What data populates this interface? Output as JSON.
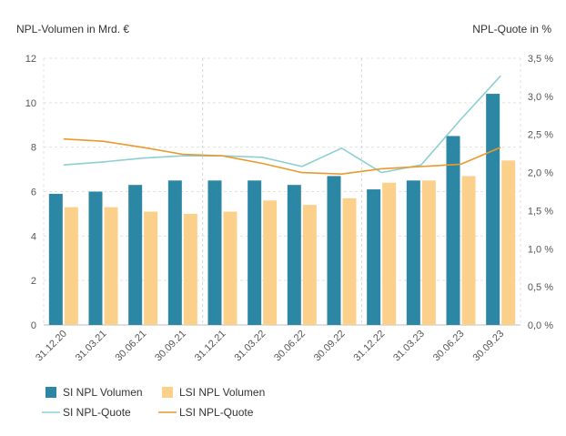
{
  "chart_data": {
    "type": "bar",
    "ylabel": "NPL-Volumen in Mrd. €",
    "y2label": "NPL-Quote in %",
    "ylim": [
      0,
      12
    ],
    "y2lim": [
      0,
      3.5
    ],
    "yticks": [
      "0",
      "2",
      "4",
      "6",
      "8",
      "10",
      "12"
    ],
    "y2ticks": [
      "0,0 %",
      "0,5 %",
      "1,0 %",
      "1,5 %",
      "2,0 %",
      "2,5 %",
      "3,0 %",
      "3,5 %"
    ],
    "grid": true,
    "legend_position": "bottom-left",
    "categories": [
      "31.12.20",
      "31.03.21",
      "30.06.21",
      "30.09.21",
      "31.12.21",
      "31.03.22",
      "30.06.22",
      "30.09.22",
      "31.12.22",
      "31.03.23",
      "30.06.23",
      "30.09.23"
    ],
    "series": [
      {
        "name": "SI NPL Volumen",
        "kind": "bar",
        "axis": "left",
        "color": "#2b87a3",
        "values": [
          5.9,
          6.0,
          6.3,
          6.5,
          6.5,
          6.5,
          6.3,
          6.7,
          6.1,
          6.5,
          8.5,
          10.4
        ]
      },
      {
        "name": "LSI NPL Volumen",
        "kind": "bar",
        "axis": "left",
        "color": "#fbd08b",
        "values": [
          5.3,
          5.3,
          5.1,
          5.0,
          5.1,
          5.6,
          5.4,
          5.7,
          6.4,
          6.5,
          6.7,
          7.4
        ]
      },
      {
        "name": "SI NPL-Quote",
        "kind": "line",
        "axis": "right",
        "color": "#8ecfd2",
        "values": [
          2.1,
          2.14,
          2.19,
          2.22,
          2.22,
          2.2,
          2.08,
          2.32,
          2.0,
          2.1,
          2.7,
          3.27
        ]
      },
      {
        "name": "LSI NPL-Quote",
        "kind": "line",
        "axis": "right",
        "color": "#e99a2c",
        "values": [
          2.44,
          2.41,
          2.33,
          2.24,
          2.22,
          2.12,
          2.0,
          1.98,
          2.05,
          2.08,
          2.11,
          2.33
        ]
      }
    ]
  }
}
